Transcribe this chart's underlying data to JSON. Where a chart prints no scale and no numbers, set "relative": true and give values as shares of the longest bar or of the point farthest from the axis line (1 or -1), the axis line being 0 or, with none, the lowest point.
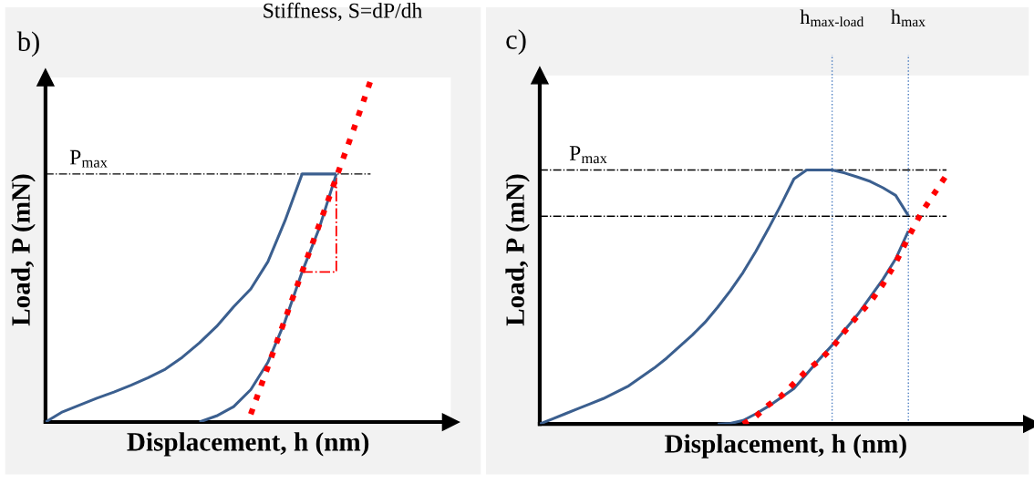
{
  "chart_data": [
    {
      "type": "line",
      "title": "b)",
      "xlabel": "Displacement, h (nm)",
      "ylabel": "Load, P (mN)",
      "relative": true,
      "categories": [
        null,
        null,
        null,
        null,
        null,
        null,
        null,
        null,
        null,
        null,
        null,
        null,
        null,
        null,
        null,
        null,
        null,
        null,
        null,
        null
      ],
      "annotations": [
        "Stiffness, S=dP/dh"
      ],
      "series": [
        {
          "name": "P$_{max}$",
          "color": "#000000",
          "line_style": "dashdot",
          "values": [
            0.727,
            0.727,
            0.727,
            0.727,
            0.727,
            0.727,
            0.727,
            0.727,
            0.727,
            0.727,
            0.727,
            0.727,
            0.727,
            0.727,
            0.727,
            0.727,
            0.727,
            0.727,
            0.727,
            0.727
          ]
        },
        {
          "color": "#3b5f8f",
          "line_style": "solid",
          "values": [
            0,
            0.03,
            0.05,
            0.07,
            0.088,
            0.108,
            0.13,
            0.155,
            0.19,
            0.232,
            0.28,
            0.338,
            0.39,
            0.47,
            0.59,
            0.727,
            0.727,
            0.727,
            null,
            null
          ]
        },
        {
          "color": "#3b5f8f",
          "line_style": "solid",
          "values": [
            null,
            null,
            null,
            null,
            null,
            null,
            null,
            null,
            null,
            0,
            0.018,
            0.045,
            0.095,
            0.175,
            0.295,
            0.44,
            0.568,
            0.727,
            null,
            null
          ]
        },
        {
          "color": "#ff0000",
          "line_style": "dotted",
          "values": [
            null,
            null,
            null,
            null,
            null,
            null,
            null,
            null,
            null,
            null,
            null,
            null,
            0.023,
            0.162,
            0.301,
            0.44,
            0.578,
            0.717,
            0.856,
            1.0
          ]
        }
      ]
    },
    {
      "type": "line",
      "title": "c)",
      "xlabel": "Displacement, h (nm)",
      "ylabel": "Load, P (mN)",
      "relative": true,
      "categories": [
        null,
        null,
        null,
        null,
        null,
        null,
        null,
        null,
        null,
        null,
        null,
        null,
        null,
        null,
        null,
        null,
        null,
        null,
        null,
        null,
        null,
        null,
        null,
        "h$_{max‐load}$",
        null,
        null,
        null,
        null,
        null,
        "h$_{max}$",
        null,
        null,
        null
      ],
      "ref_lines": [
        {
          "axis": "x",
          "value": "h$_{max‐load}$",
          "color": "#4a7cc0",
          "line_style": "dotted"
        },
        {
          "axis": "x",
          "value": "h$_{max}$",
          "color": "#4a7cc0",
          "line_style": "dotted"
        }
      ],
      "series": [
        {
          "name": "P$_{max}$",
          "color": "#000000",
          "line_style": "dashdot",
          "values": [
            1.0,
            1.0,
            1.0,
            1.0,
            1.0,
            1.0,
            1.0,
            1.0,
            1.0,
            1.0,
            1.0,
            1.0,
            1.0,
            1.0,
            1.0,
            1.0,
            1.0,
            1.0,
            1.0,
            1.0,
            1.0,
            1.0,
            1.0,
            1.0,
            1.0,
            1.0,
            1.0,
            1.0,
            1.0,
            1.0,
            1.0,
            1.0,
            1.0
          ]
        },
        {
          "color": "#000000",
          "line_style": "dashdot",
          "values": [
            0.818,
            0.818,
            0.818,
            0.818,
            0.818,
            0.818,
            0.818,
            0.818,
            0.818,
            0.818,
            0.818,
            0.818,
            0.818,
            0.818,
            0.818,
            0.818,
            0.818,
            0.818,
            0.818,
            0.818,
            0.818,
            0.818,
            0.818,
            0.818,
            0.818,
            0.818,
            0.818,
            0.818,
            0.818,
            0.818,
            0.818,
            0.818,
            0.818
          ]
        },
        {
          "color": "#3b5f8f",
          "line_style": "solid",
          "values": [
            0,
            0.02,
            0.04,
            0.06,
            0.08,
            0.1,
            0.125,
            0.15,
            0.185,
            0.22,
            0.26,
            0.305,
            0.35,
            0.4,
            0.46,
            0.525,
            0.597,
            0.68,
            0.77,
            0.865,
            0.965,
            1.0,
            1.0,
            1.0,
            0.988,
            0.972,
            0.955,
            0.93,
            0.9,
            0.82,
            null,
            null,
            null
          ]
        },
        {
          "color": "#3b5f8f",
          "line_style": "solid",
          "values": [
            null,
            null,
            null,
            null,
            null,
            null,
            null,
            null,
            null,
            null,
            null,
            null,
            null,
            null,
            0,
            0.002,
            0.014,
            0.04,
            0.07,
            0.105,
            0.14,
            0.197,
            0.255,
            0.31,
            0.37,
            0.43,
            0.5,
            0.57,
            0.65,
            0.76,
            null,
            null,
            null
          ]
        },
        {
          "color": "#ff0000",
          "line_style": "dotted",
          "values": [
            null,
            null,
            null,
            null,
            null,
            null,
            null,
            null,
            null,
            null,
            null,
            null,
            null,
            null,
            null,
            null,
            0,
            0.03,
            0.075,
            0.11,
            0.16,
            0.21,
            0.25,
            0.3,
            0.365,
            0.425,
            0.48,
            0.55,
            0.635,
            0.735,
            0.83,
            0.905,
            0.98
          ]
        }
      ]
    }
  ]
}
